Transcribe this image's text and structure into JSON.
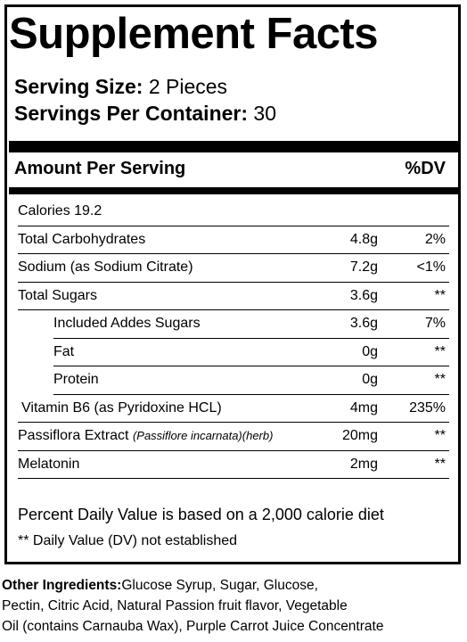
{
  "title": "Supplement Facts",
  "serving": {
    "size_label": "Serving Size:",
    "size_value": " 2 Pieces",
    "per_container_label": "Servings Per Container:",
    "per_container_value": " 30"
  },
  "header": {
    "amount_label": "Amount Per Serving",
    "dv_label": "%DV"
  },
  "rows": [
    {
      "name": "Calories 19.2",
      "amount": "",
      "dv": ""
    },
    {
      "name": "Total Carbohydrates",
      "amount": "4.8g",
      "dv": "2%"
    },
    {
      "name": "Sodium (as Sodium Citrate)",
      "amount": "7.2g",
      "dv": "<1%"
    },
    {
      "name": "Total Sugars",
      "amount": "3.6g",
      "dv": "**"
    },
    {
      "name": "Included Addes Sugars",
      "amount": "3.6g",
      "dv": "7%"
    },
    {
      "name": "Fat",
      "amount": "0g",
      "dv": "**"
    },
    {
      "name": "Protein",
      "amount": "0g",
      "dv": "**"
    },
    {
      "name": "Vitamin B6 (as Pyridoxine HCL)",
      "amount": "4mg",
      "dv": "235%"
    },
    {
      "name": "Passiflora Extract ",
      "name_italic": "(Passiflore incarnata)(herb)",
      "amount": "20mg",
      "dv": "**"
    },
    {
      "name": "Melatonin",
      "amount": "2mg",
      "dv": "**"
    }
  ],
  "footnotes": {
    "daily_value": "Percent Daily Value is based on a 2,000 calorie diet",
    "not_established": "** Daily Value (DV) not established"
  },
  "ingredients": {
    "label": "Other Ingredients:",
    "line1": "Glucose Syrup,  Sugar, Glucose,",
    "line2": "Pectin, Citric Acid, Natural Passion fruit flavor, Vegetable",
    "line3": "Oil (contains Carnauba Wax), Purple Carrot Juice Concentrate"
  }
}
